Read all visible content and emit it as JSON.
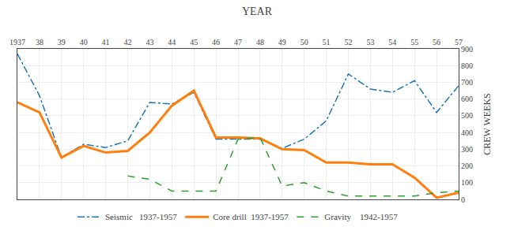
{
  "chart_data": {
    "type": "line",
    "title": "YEAR",
    "ylabel": "CREW WEEKS",
    "x": [
      1937,
      1938,
      1939,
      1940,
      1941,
      1942,
      1943,
      1944,
      1945,
      1946,
      1947,
      1948,
      1949,
      1950,
      1951,
      1952,
      1953,
      1954,
      1955,
      1956,
      1957
    ],
    "series": [
      {
        "name": "Seismic   1937-1957",
        "line_style": "dashdot",
        "values": [
          870,
          620,
          250,
          330,
          310,
          350,
          580,
          570,
          640,
          360,
          360,
          360,
          305,
          360,
          470,
          750,
          660,
          640,
          710,
          520,
          680
        ]
      },
      {
        "name": "Core drill  1937-1957",
        "line_style": "solid",
        "values": [
          580,
          520,
          250,
          320,
          280,
          290,
          400,
          560,
          650,
          370,
          370,
          365,
          300,
          295,
          220,
          220,
          210,
          210,
          130,
          10,
          40
        ]
      },
      {
        "name": "Gravity    1942-1957",
        "line_style": "dash",
        "values": [
          null,
          null,
          null,
          null,
          null,
          140,
          120,
          50,
          50,
          50,
          360,
          370,
          80,
          100,
          50,
          20,
          20,
          20,
          20,
          40,
          50
        ]
      }
    ],
    "xlim": [
      1937,
      1957
    ],
    "xticks": [
      1937,
      {
        "value": 1938,
        "label": "38"
      },
      {
        "value": 1939,
        "label": "39"
      },
      {
        "value": 1940,
        "label": "40"
      },
      {
        "value": 1941,
        "label": "41"
      },
      {
        "value": 1942,
        "label": "42"
      },
      {
        "value": 1943,
        "label": "43"
      },
      {
        "value": 1944,
        "label": "44"
      },
      {
        "value": 1945,
        "label": "45"
      },
      {
        "value": 1946,
        "label": "46"
      },
      {
        "value": 1947,
        "label": "47"
      },
      {
        "value": 1948,
        "label": "48"
      },
      {
        "value": 1949,
        "label": "49"
      },
      {
        "value": 1950,
        "label": "50"
      },
      {
        "value": 1951,
        "label": "51"
      },
      {
        "value": 1952,
        "label": "52"
      },
      {
        "value": 1953,
        "label": "53"
      },
      {
        "value": 1954,
        "label": "54"
      },
      {
        "value": 1955,
        "label": "55"
      },
      {
        "value": 1956,
        "label": "56"
      },
      {
        "value": 1957,
        "label": "57"
      }
    ],
    "ylim": [
      0,
      900
    ],
    "yticks": [
      0,
      100,
      200,
      300,
      400,
      500,
      600,
      700,
      800,
      900
    ],
    "grid": true,
    "legend": "bottom"
  }
}
